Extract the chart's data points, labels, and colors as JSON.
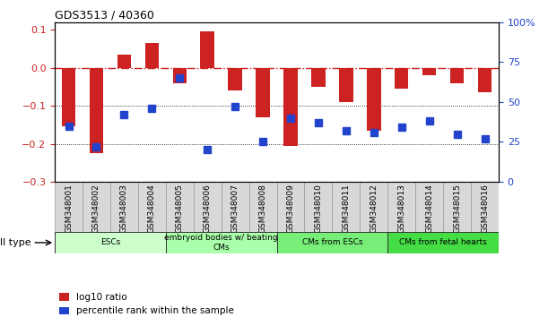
{
  "title": "GDS3513 / 40360",
  "samples": [
    "GSM348001",
    "GSM348002",
    "GSM348003",
    "GSM348004",
    "GSM348005",
    "GSM348006",
    "GSM348007",
    "GSM348008",
    "GSM348009",
    "GSM348010",
    "GSM348011",
    "GSM348012",
    "GSM348013",
    "GSM348014",
    "GSM348015",
    "GSM348016"
  ],
  "log10_ratio": [
    -0.155,
    -0.225,
    0.035,
    0.065,
    -0.04,
    0.095,
    -0.06,
    -0.13,
    -0.205,
    -0.05,
    -0.09,
    -0.165,
    -0.055,
    -0.02,
    -0.04,
    -0.065
  ],
  "percentile_rank": [
    35,
    22,
    42,
    46,
    65,
    20,
    47,
    25,
    40,
    37,
    32,
    31,
    34,
    38,
    30,
    27
  ],
  "bar_color": "#cc2222",
  "dot_color": "#2244cc",
  "ref_line_color": "#cc2222",
  "cell_types": [
    {
      "label": "ESCs",
      "start": 0,
      "end": 4,
      "color": "#ccffcc"
    },
    {
      "label": "embryoid bodies w/ beating\nCMs",
      "start": 4,
      "end": 8,
      "color": "#aaffaa"
    },
    {
      "label": "CMs from ESCs",
      "start": 8,
      "end": 12,
      "color": "#77ee77"
    },
    {
      "label": "CMs from fetal hearts",
      "start": 12,
      "end": 16,
      "color": "#44dd44"
    }
  ],
  "ylim_left": [
    -0.3,
    0.12
  ],
  "ylim_right": [
    0,
    100
  ],
  "left_yticks": [
    -0.3,
    -0.2,
    -0.1,
    0.0,
    0.1
  ],
  "right_yticks": [
    0,
    25,
    50,
    75,
    100
  ],
  "right_yticklabels": [
    "0",
    "25",
    "50",
    "75",
    "100%"
  ],
  "bar_width": 0.5,
  "dot_size": 6
}
